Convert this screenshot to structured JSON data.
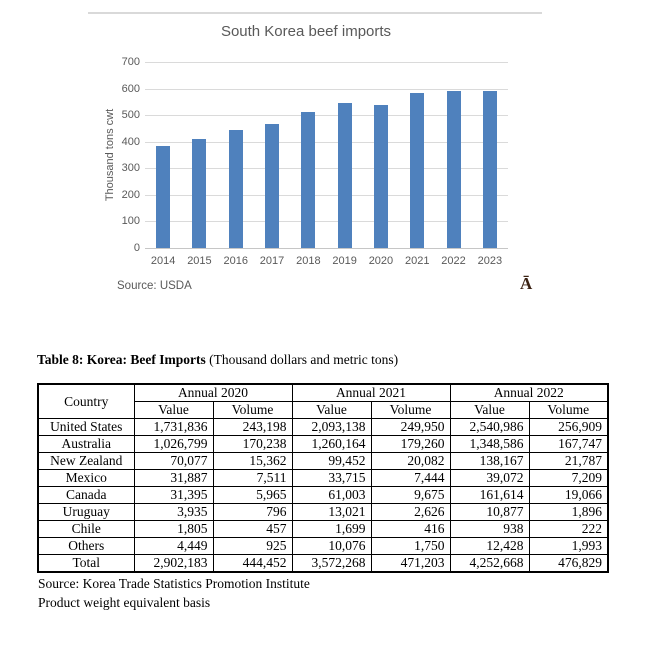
{
  "page": {
    "top_rule_color": "#d9d9d9"
  },
  "chart_data": {
    "type": "bar",
    "title": "South Korea beef imports",
    "categories": [
      "2014",
      "2015",
      "2016",
      "2017",
      "2018",
      "2019",
      "2020",
      "2021",
      "2022",
      "2023"
    ],
    "values": [
      385,
      410,
      445,
      465,
      510,
      545,
      540,
      585,
      590,
      590
    ],
    "xlabel": "",
    "ylabel": "Thousand tons cwt",
    "ylim": [
      0,
      700
    ],
    "ytick_step": 100,
    "grid": true,
    "legend_position": "none",
    "bar_color": "#4f81bd",
    "source_note": "Source: USDA"
  },
  "chart_misc": {
    "watermark": "Ā"
  },
  "table": {
    "title_bold": "Table 8: Korea: Beef Imports",
    "title_rest": " (Thousand dollars and metric tons)",
    "corner_header": "Country",
    "col_groups": [
      "Annual 2020",
      "Annual 2021",
      "Annual 2022"
    ],
    "sub_headers": [
      "Value",
      "Volume"
    ],
    "rows": [
      [
        "United States",
        "1,731,836",
        "243,198",
        "2,093,138",
        "249,950",
        "2,540,986",
        "256,909"
      ],
      [
        "Australia",
        "1,026,799",
        "170,238",
        "1,260,164",
        "179,260",
        "1,348,586",
        "167,747"
      ],
      [
        "New Zealand",
        "70,077",
        "15,362",
        "99,452",
        "20,082",
        "138,167",
        "21,787"
      ],
      [
        "Mexico",
        "31,887",
        "7,511",
        "33,715",
        "7,444",
        "39,072",
        "7,209"
      ],
      [
        "Canada",
        "31,395",
        "5,965",
        "61,003",
        "9,675",
        "161,614",
        "19,066"
      ],
      [
        "Uruguay",
        "3,935",
        "796",
        "13,021",
        "2,626",
        "10,877",
        "1,896"
      ],
      [
        "Chile",
        "1,805",
        "457",
        "1,699",
        "416",
        "938",
        "222"
      ],
      [
        "Others",
        "4,449",
        "925",
        "10,076",
        "1,750",
        "12,428",
        "1,993"
      ],
      [
        "Total",
        "2,902,183",
        "444,452",
        "3,572,268",
        "471,203",
        "4,252,668",
        "476,829"
      ]
    ],
    "footnotes": [
      "Source: Korea Trade Statistics Promotion Institute",
      "Product weight equivalent basis"
    ]
  }
}
